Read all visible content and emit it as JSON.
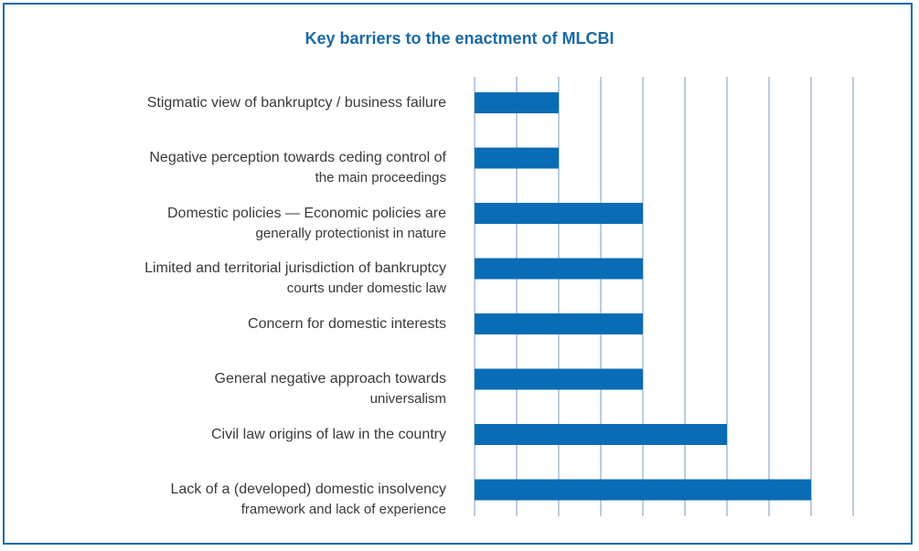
{
  "chart_data": {
    "type": "bar",
    "orientation": "horizontal",
    "title": "Key barriers to the enactment of MLCBI",
    "categories": [
      [
        "Stigmatic view of bankruptcy / business failure"
      ],
      [
        "Negative perception towards ceding control of",
        "the main proceedings"
      ],
      [
        "Domestic policies — Economic policies are",
        "generally protectionist in nature"
      ],
      [
        "Limited and territorial jurisdiction of bankruptcy",
        "courts under domestic law"
      ],
      [
        "Concern for domestic interests"
      ],
      [
        "General negative approach towards",
        "universalism"
      ],
      [
        "Civil law origins of law in the country"
      ],
      [
        "Lack of a (developed) domestic insolvency",
        "framework and lack of experience"
      ]
    ],
    "values": [
      2,
      2,
      4,
      4,
      4,
      4,
      6,
      8
    ],
    "xlim": [
      0,
      9
    ],
    "grid": true,
    "bar_color": "#0a6cb5",
    "grid_color": "#a9bcd9",
    "xlabel": "",
    "ylabel": ""
  }
}
